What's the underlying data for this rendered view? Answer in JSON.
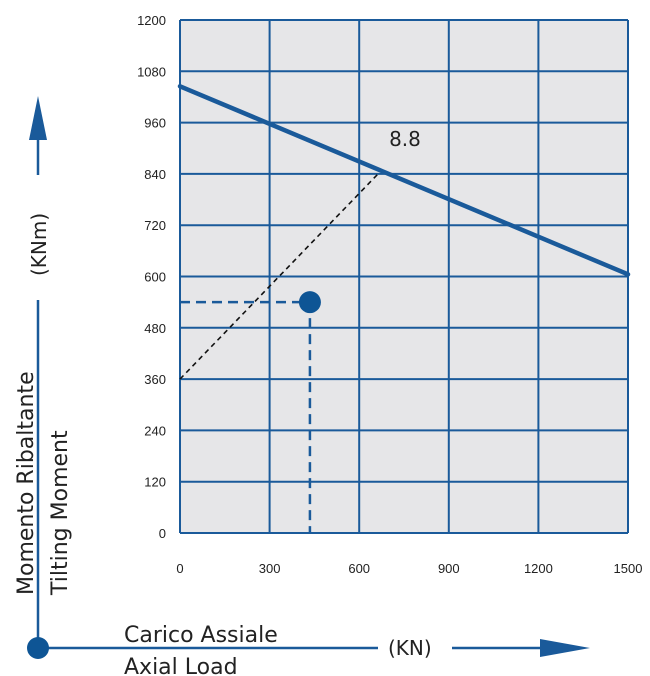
{
  "chart_data": {
    "type": "line",
    "xlim": [
      0,
      1500
    ],
    "ylim": [
      0,
      1200
    ],
    "x_ticks": [
      0,
      300,
      600,
      900,
      1200,
      1500
    ],
    "y_ticks": [
      0,
      120,
      240,
      360,
      480,
      600,
      720,
      840,
      960,
      1080,
      1200
    ],
    "grid": true,
    "series": [
      {
        "name": "8.8",
        "x": [
          0,
          1500
        ],
        "y": [
          1045,
          605
        ]
      }
    ],
    "load_line": {
      "x": [
        0,
        670
      ],
      "y": [
        360,
        845
      ]
    },
    "operating_point": {
      "x": 435,
      "y": 540
    },
    "y_title_it": "Momento Ribaltante",
    "y_title_en": "Tilting Moment",
    "y_unit": "(KNm)",
    "x_title_it": "Carico Assiale",
    "x_title_en": "Axial Load",
    "x_unit": "(KN)"
  },
  "colors": {
    "plot_bg": "#e6e6e8",
    "grid": "#1a5a9a",
    "curve": "#1a5a9a",
    "point": "#0e5595",
    "guide": "#1a5a9a",
    "load_line": "#111111",
    "axis_arrow": "#1a5a9a"
  }
}
